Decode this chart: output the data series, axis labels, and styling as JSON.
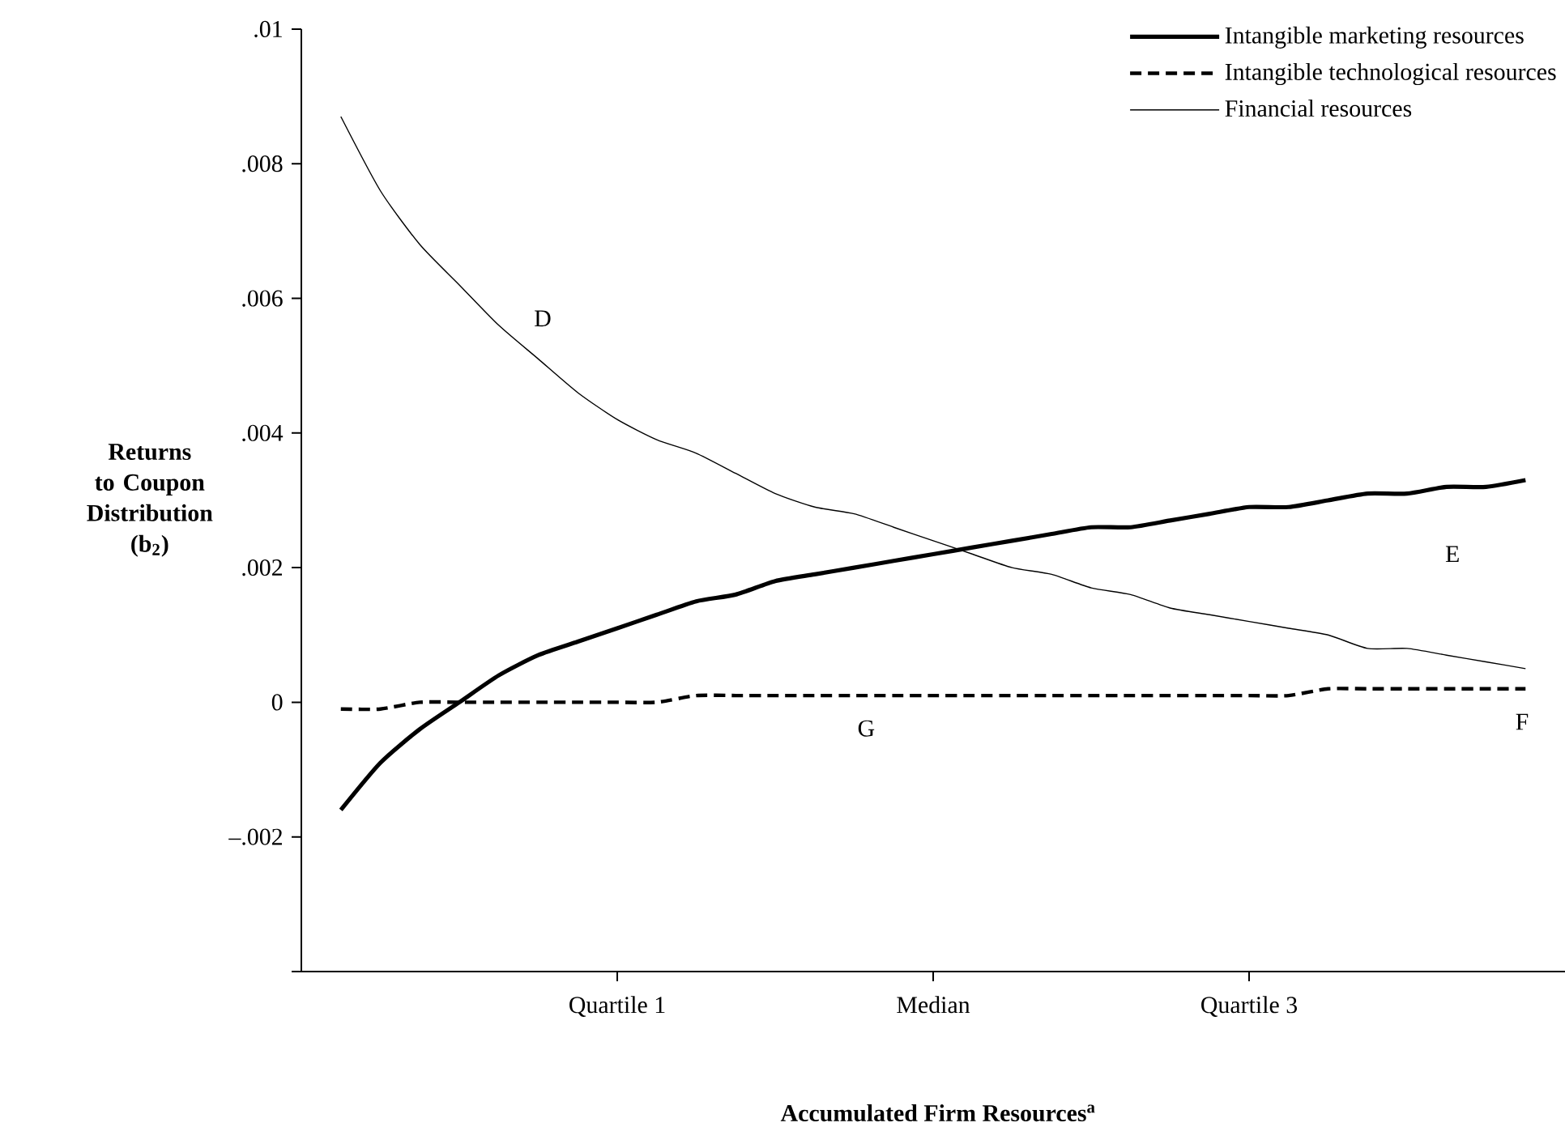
{
  "chart_data": {
    "type": "line",
    "xlabel": "Accumulated Firm Resources$^{a}$",
    "ylabel": "Returns to Coupon Distribution (b$_{2}$)",
    "categories": [
      null,
      null,
      null,
      null,
      null,
      null,
      null,
      null,
      "Quartile 1",
      null,
      null,
      null,
      null,
      null,
      null,
      null,
      "Median",
      null,
      null,
      null,
      null,
      null,
      null,
      null,
      "Quartile 3",
      null,
      null,
      null,
      null,
      null,
      null,
      null,
      null
    ],
    "ylim": [
      -0.004,
      0.01
    ],
    "yticks": [
      {
        "value": -0.004,
        "label": null
      },
      {
        "value": -0.002,
        "label": "–.002"
      },
      {
        "value": 0,
        "label": "0"
      },
      {
        "value": 0.002,
        "label": ".002"
      },
      {
        "value": 0.004,
        "label": ".004"
      },
      {
        "value": 0.006,
        "label": ".006"
      },
      {
        "value": 0.008,
        "label": ".008"
      },
      {
        "value": 0.01,
        "label": ".01"
      }
    ],
    "legend": "top right",
    "marker": "none",
    "series": [
      {
        "name": "Intangible marketing resources",
        "color": "#000000",
        "line_style": "solid",
        "values": [
          null,
          -0.0016,
          -0.0009,
          -0.0004,
          0.0,
          0.0004,
          0.0007,
          0.0009,
          0.0011,
          0.0013,
          0.0015,
          0.0016,
          0.0018,
          0.0019,
          0.002,
          0.0021,
          0.0022,
          0.0023,
          0.0024,
          0.0025,
          0.0026,
          0.0026,
          0.0027,
          0.0028,
          0.0029,
          0.0029,
          0.003,
          0.0031,
          0.0031,
          0.0032,
          0.0032,
          0.0033,
          null
        ]
      },
      {
        "name": "Intangible technological resources",
        "color": "#000000",
        "line_style": "dashed",
        "values": [
          null,
          -0.0001,
          -0.0001,
          0.0,
          0.0,
          0.0,
          0.0,
          0.0,
          0.0,
          0.0,
          0.0001,
          0.0001,
          0.0001,
          0.0001,
          0.0001,
          0.0001,
          0.0001,
          0.0001,
          0.0001,
          0.0001,
          0.0001,
          0.0001,
          0.0001,
          0.0001,
          0.0001,
          0.0001,
          0.0002,
          0.0002,
          0.0002,
          0.0002,
          0.0002,
          0.0002,
          null
        ]
      },
      {
        "name": "Financial resources",
        "color": "#000000",
        "line_style": "solid",
        "values": [
          null,
          0.0087,
          0.0076,
          0.0068,
          0.0062,
          0.0056,
          0.0051,
          0.0046,
          0.0042,
          0.0039,
          0.0037,
          0.0034,
          0.0031,
          0.0029,
          0.0028,
          0.0026,
          0.0024,
          0.0022,
          0.002,
          0.0019,
          0.0017,
          0.0016,
          0.0014,
          0.0013,
          0.0012,
          0.0011,
          0.001,
          0.0008,
          0.0008,
          0.0007,
          0.0006,
          0.0005,
          null
        ]
      }
    ],
    "annotations": [
      "D",
      "E",
      "F",
      "G"
    ]
  }
}
